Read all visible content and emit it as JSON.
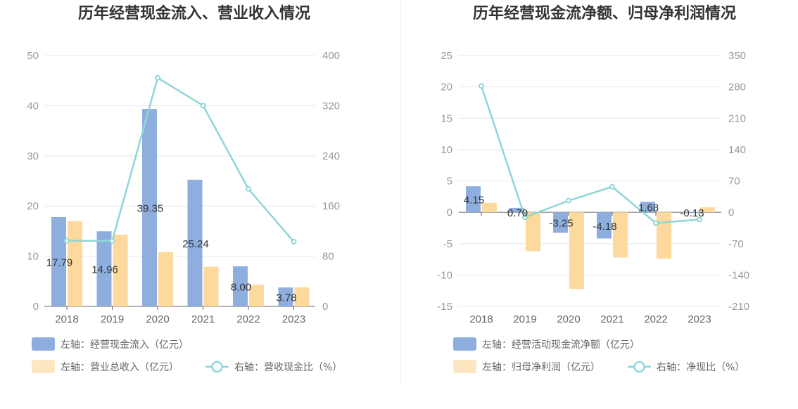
{
  "chart_data": [
    {
      "type": "bar",
      "title": "历年经营现金流入、营业收入情况",
      "categories": [
        "2018",
        "2019",
        "2020",
        "2021",
        "2022",
        "2023"
      ],
      "left_axis": {
        "min": 0,
        "max": 50,
        "ticks": [
          "0",
          "10",
          "20",
          "30",
          "40",
          "50"
        ]
      },
      "right_axis": {
        "min": 0,
        "max": 400,
        "ticks": [
          "0",
          "80",
          "160",
          "240",
          "320",
          "400"
        ]
      },
      "series": [
        {
          "name": "左轴：经营现金流入（亿元）",
          "kind": "bar",
          "axis": "left",
          "color": "#8eaedd",
          "values": [
            17.79,
            14.96,
            39.35,
            25.24,
            8.0,
            3.78
          ],
          "labels": [
            "17.79",
            "14.96",
            "39.35",
            "25.24",
            "8.00",
            "3.78"
          ]
        },
        {
          "name": "左轴：营业总收入（亿元）",
          "kind": "bar",
          "axis": "left",
          "color": "#fdd99d",
          "values": [
            17.0,
            14.3,
            10.8,
            7.9,
            4.3,
            3.8
          ]
        },
        {
          "name": "右轴：营收现金比（%）",
          "kind": "line",
          "axis": "right",
          "color": "#8fd6d8",
          "values": [
            104.6,
            104.6,
            364.4,
            320.3,
            187.3,
            103.1
          ]
        }
      ],
      "legend_position": "bottom",
      "grid": true
    },
    {
      "type": "bar",
      "title": "历年经营现金流净额、归母净利润情况",
      "categories": [
        "2018",
        "2019",
        "2020",
        "2021",
        "2022",
        "2023"
      ],
      "left_axis": {
        "min": -15,
        "max": 25,
        "ticks": [
          "-15",
          "-10",
          "-5",
          "0",
          "5",
          "10",
          "15",
          "20",
          "25"
        ]
      },
      "right_axis": {
        "min": -210,
        "max": 350,
        "ticks": [
          "-210",
          "-140",
          "-70",
          "0",
          "70",
          "140",
          "210",
          "280",
          "350"
        ]
      },
      "series": [
        {
          "name": "左轴：经营活动现金流净额（亿元）",
          "kind": "bar",
          "axis": "left",
          "color": "#8eaedd",
          "values": [
            4.15,
            0.7,
            -3.25,
            -4.18,
            1.68,
            -0.13
          ],
          "labels": [
            "4.15",
            "0.70",
            "-3.25",
            "-4.18",
            "1.68",
            "-0.13"
          ]
        },
        {
          "name": "左轴：归母净利润（亿元）",
          "kind": "bar",
          "axis": "left",
          "color": "#fdd99d",
          "values": [
            1.5,
            -6.2,
            -12.2,
            -7.2,
            -7.4,
            0.8
          ]
        },
        {
          "name": "右轴：净现比（%）",
          "kind": "line",
          "axis": "right",
          "color": "#8fd6d8",
          "values": [
            282,
            -11,
            26,
            57,
            -24,
            -16
          ]
        }
      ],
      "legend_position": "bottom",
      "grid": true
    }
  ]
}
